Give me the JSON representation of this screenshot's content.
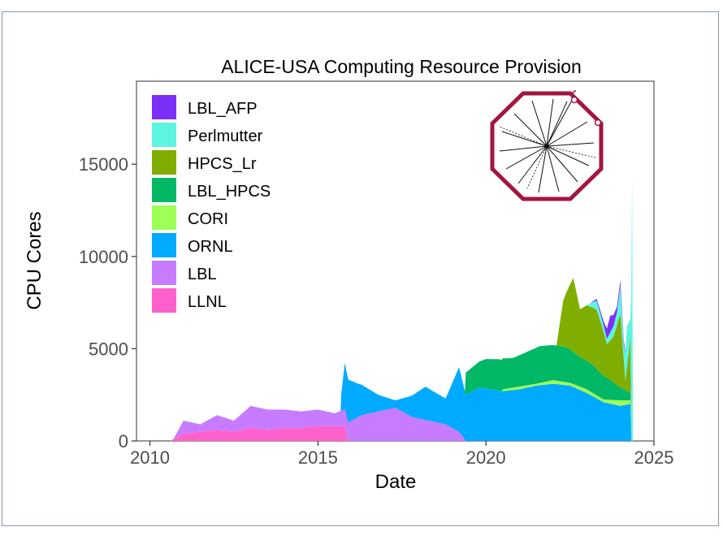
{
  "chart_data": {
    "type": "area",
    "title": "ALICE-USA Computing Resource Provision",
    "xlabel": "Date",
    "ylabel": "CPU Cores",
    "xlim": [
      2009.6,
      2025.0
    ],
    "ylim": [
      0,
      19500
    ],
    "x_ticks": [
      2010,
      2015,
      2020,
      2025
    ],
    "y_ticks": [
      0,
      5000,
      10000,
      15000
    ],
    "x_tick_labels": [
      "2010",
      "2015",
      "2020",
      "2025"
    ],
    "y_tick_labels": [
      "0",
      "5000",
      "10000",
      "15000"
    ],
    "legend_position": "top-left",
    "stack_order_bottom_to_top": [
      "LLNL",
      "LBL",
      "ORNL",
      "CORI",
      "LBL_HPCS",
      "HPCS_Lr",
      "Perlmutter",
      "LBL_AFP"
    ],
    "series": [
      {
        "name": "LBL_AFP",
        "color": "#7b2ff7",
        "x": [
          2023.1,
          2023.5,
          2023.7,
          2023.9,
          2024.05,
          2024.2,
          2024.3
        ],
        "values": [
          0,
          200,
          900,
          300,
          300,
          0,
          0
        ]
      },
      {
        "name": "Perlmutter",
        "color": "#5cf5e0",
        "x": [
          2023.0,
          2023.3,
          2023.6,
          2023.9,
          2024.0,
          2024.1,
          2024.2,
          2024.3,
          2024.35
        ],
        "values": [
          0,
          500,
          300,
          700,
          1500,
          800,
          2200,
          1000,
          14500
        ]
      },
      {
        "name": "HPCS_Lr",
        "color": "#7fae00",
        "x": [
          2022.1,
          2022.3,
          2022.6,
          2022.8,
          2023.0,
          2023.3,
          2023.5,
          2023.6,
          2023.8,
          2024.0,
          2024.15,
          2024.3
        ],
        "values": [
          0,
          2500,
          4000,
          2600,
          3000,
          3200,
          2400,
          1800,
          2500,
          4000,
          500,
          3000
        ]
      },
      {
        "name": "LBL_HPCS",
        "color": "#00b865",
        "x": [
          2019.4,
          2019.8,
          2020.0,
          2020.4,
          2020.8,
          2021.2,
          2021.6,
          2022.0,
          2022.4,
          2022.8,
          2023.2,
          2023.6,
          2024.0,
          2024.3
        ],
        "values": [
          1200,
          1400,
          1600,
          1700,
          1600,
          1800,
          2000,
          1900,
          1900,
          1600,
          1500,
          1200,
          700,
          400
        ]
      },
      {
        "name": "CORI",
        "color": "#9dff57",
        "x": [
          2020.5,
          2021.0,
          2021.5,
          2022.0,
          2022.5,
          2023.0,
          2023.5,
          2024.0,
          2024.3
        ],
        "values": [
          100,
          150,
          100,
          200,
          150,
          200,
          150,
          300,
          200
        ]
      },
      {
        "name": "ORNL",
        "color": "#00aaff",
        "x": [
          2015.7,
          2015.8,
          2016.2,
          2016.8,
          2017.3,
          2017.7,
          2018.2,
          2018.8,
          2019.2,
          2019.4,
          2019.8,
          2020.5,
          2021.0,
          2021.5,
          2022.0,
          2022.5,
          2023.0,
          2023.5,
          2024.0,
          2024.3
        ],
        "values": [
          1000,
          2500,
          1800,
          900,
          400,
          1000,
          1800,
          1400,
          3500,
          2500,
          2900,
          2700,
          2800,
          3000,
          3100,
          3000,
          2600,
          2100,
          1900,
          2000
        ]
      },
      {
        "name": "LBL",
        "color": "#c77cff",
        "x": [
          2010.7,
          2011.0,
          2011.5,
          2012.0,
          2012.5,
          2013.0,
          2013.5,
          2014.0,
          2014.5,
          2015.0,
          2015.5,
          2015.9,
          2016.3,
          2016.8,
          2017.3,
          2017.8,
          2018.3,
          2018.8,
          2019.2,
          2019.4
        ],
        "values": [
          0,
          700,
          400,
          800,
          600,
          1200,
          1100,
          1000,
          900,
          900,
          700,
          1000,
          1400,
          1600,
          1800,
          1300,
          1100,
          900,
          500,
          0
        ]
      },
      {
        "name": "LLNL",
        "color": "#ff61cc",
        "x": [
          2010.6,
          2011.0,
          2011.5,
          2012.0,
          2012.5,
          2013.0,
          2013.5,
          2014.0,
          2014.5,
          2015.0,
          2015.5,
          2015.8,
          2015.9
        ],
        "values": [
          0,
          400,
          500,
          600,
          500,
          700,
          600,
          700,
          700,
          800,
          800,
          800,
          0
        ]
      }
    ]
  }
}
